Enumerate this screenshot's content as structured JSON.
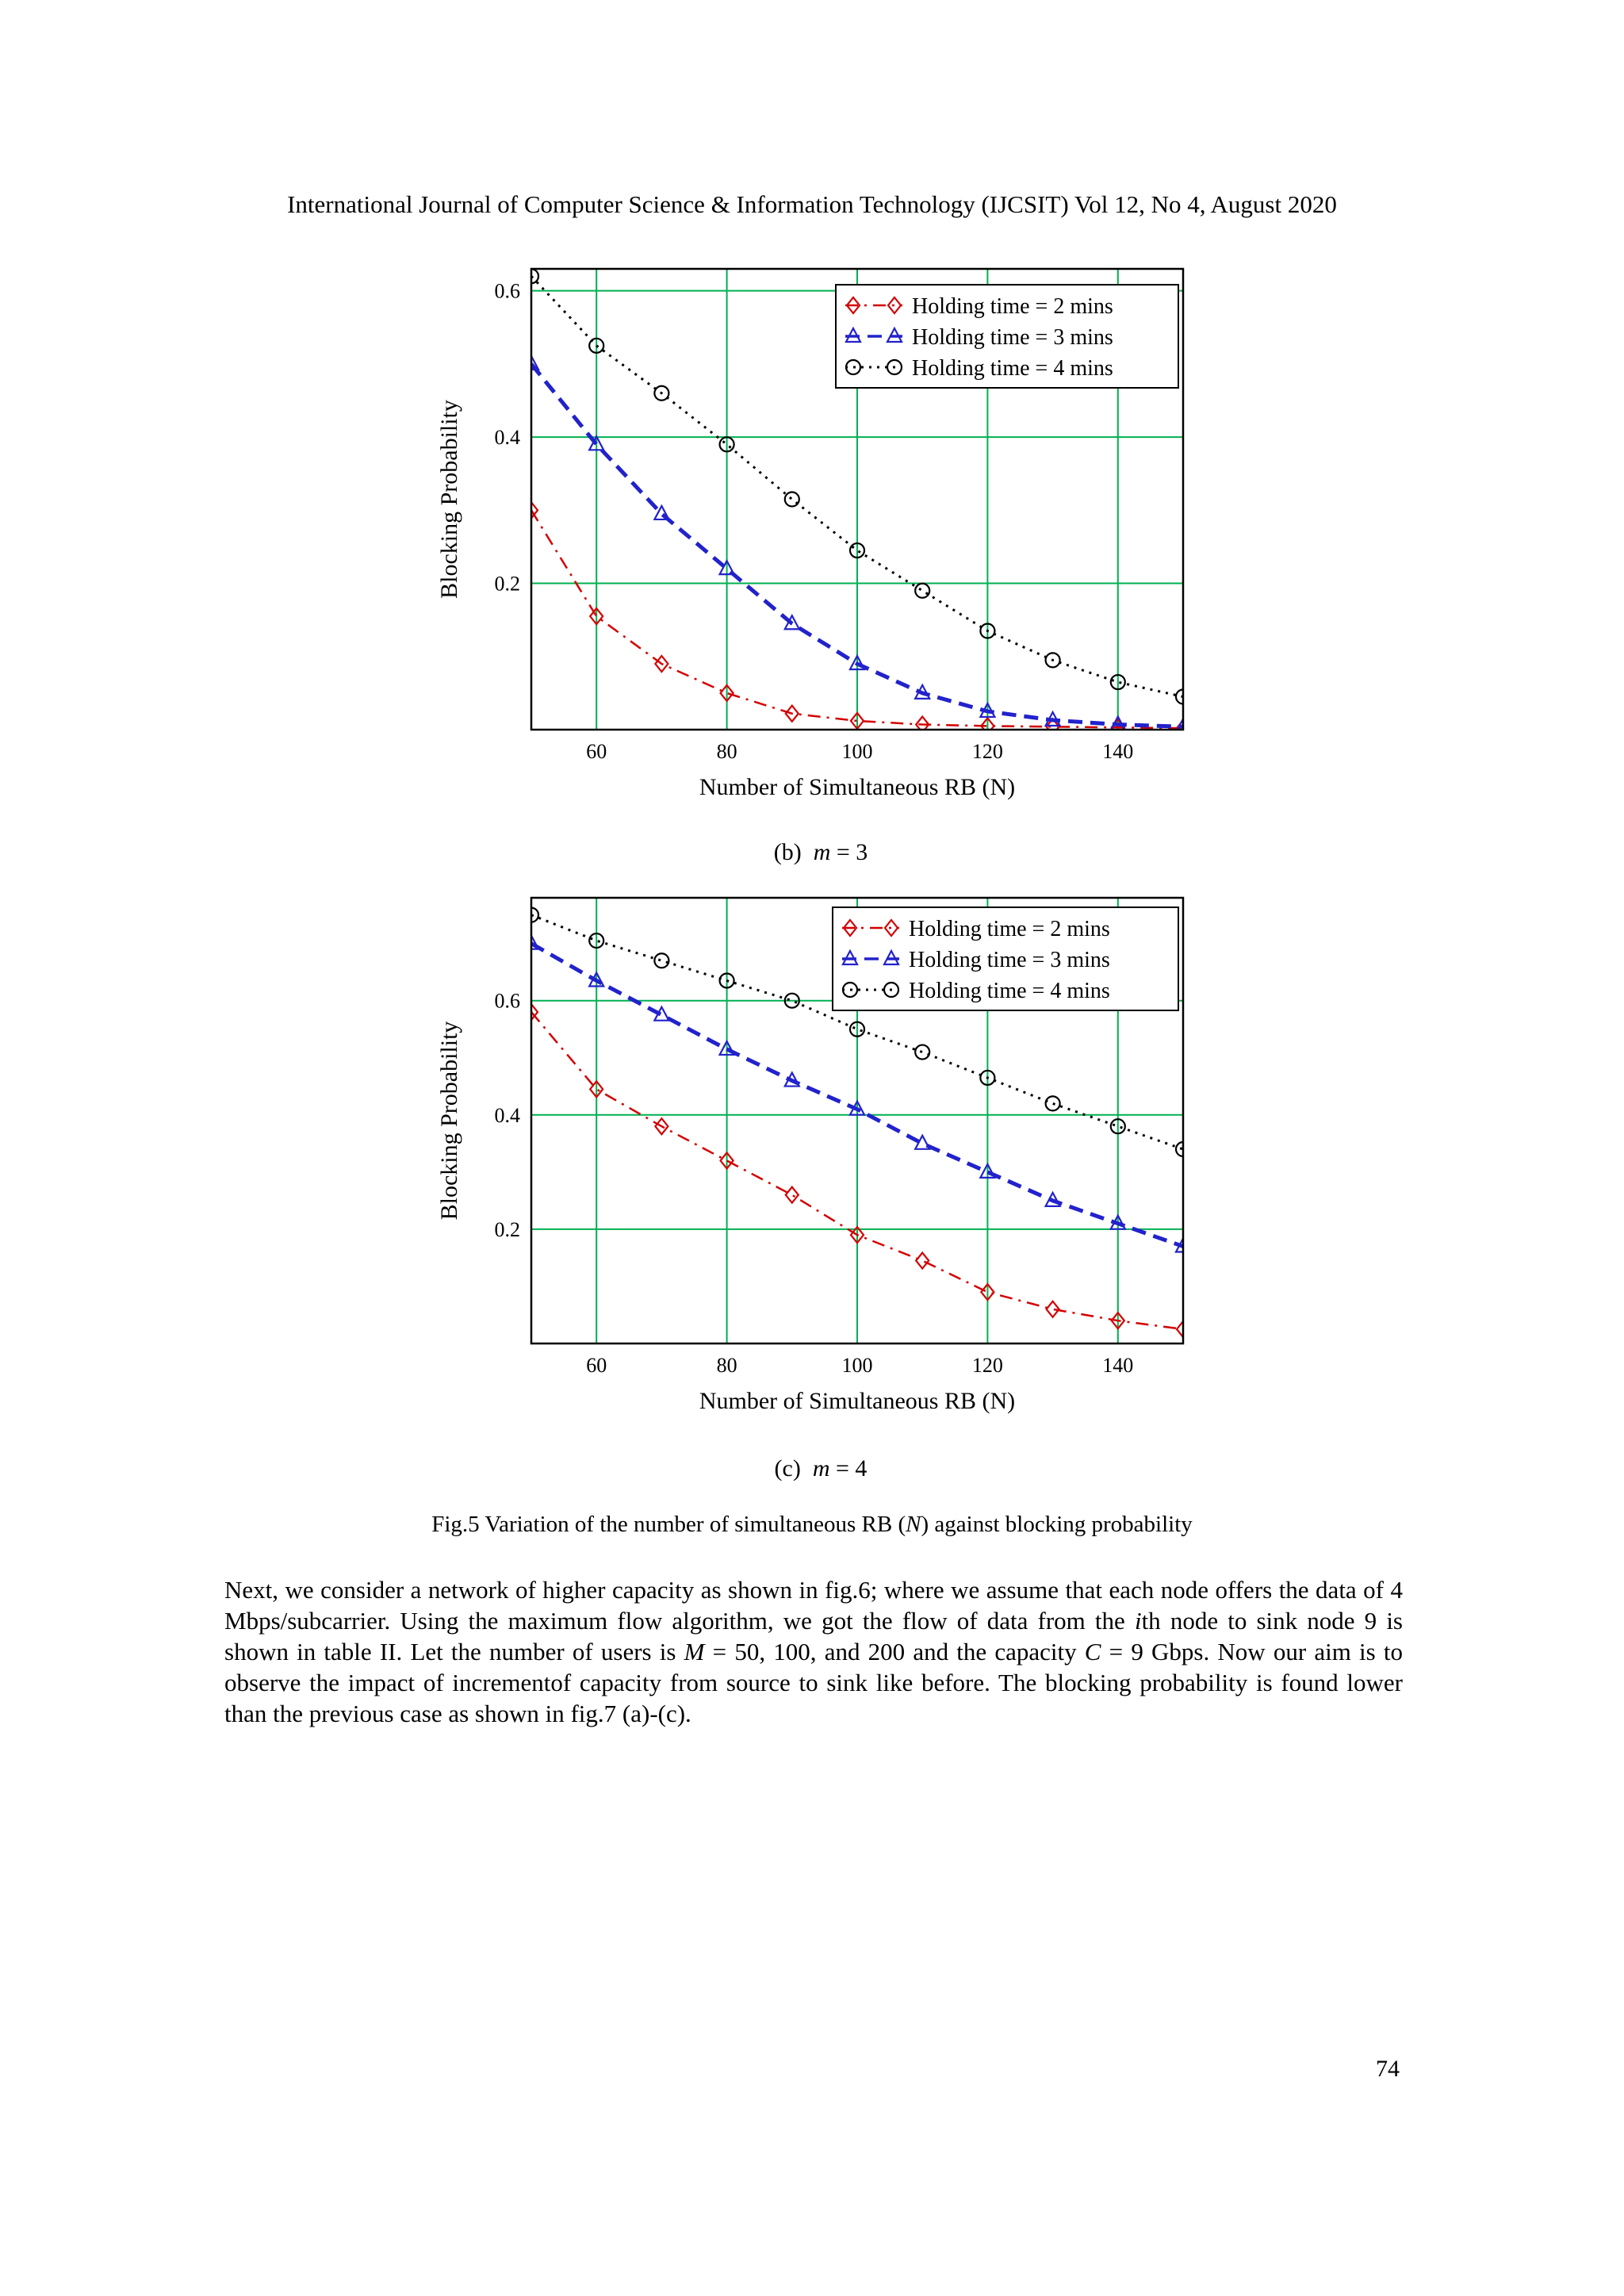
{
  "page": {
    "header": "International Journal of Computer Science & Information Technology (IJCSIT) Vol 12, No 4, August 2020",
    "page_number": "74"
  },
  "figure": {
    "caption_segments": [
      {
        "t": "Fig.5 Variation of the number of simultaneous RB ("
      },
      {
        "t": "N",
        "i": true
      },
      {
        "t": ") against blocking probability"
      }
    ],
    "sub_captions": {
      "b": [
        {
          "t": "(b)  "
        },
        {
          "t": "m",
          "i": true
        },
        {
          "t": " = 3"
        }
      ],
      "c": [
        {
          "t": "(c)  "
        },
        {
          "t": "m",
          "i": true
        },
        {
          "t": " = 4"
        }
      ]
    }
  },
  "paragraph_segments": [
    {
      "t": "Next, we consider a network of higher capacity as shown in fig.6; where we assume that each node offers the data of 4 Mbps/subcarrier. Using the maximum flow algorithm, we got the flow of data from the "
    },
    {
      "t": "i",
      "i": true
    },
    {
      "t": "th node to sink node 9 is shown in table II. Let the number of users is "
    },
    {
      "t": "M",
      "i": true
    },
    {
      "t": " = 50, 100, and 200 and the capacity "
    },
    {
      "t": "C",
      "i": true
    },
    {
      "t": " = 9 Gbps. Now our aim is to observe the impact of incrementof capacity from source to sink like before. The blocking probability is found lower than the previous case as shown in fig.7 (a)-(c)."
    }
  ],
  "colors": {
    "grid": "#00b050",
    "red": "#d40000",
    "blue": "#2222cc",
    "black": "#000000",
    "axis": "#000000"
  },
  "chart_data": [
    {
      "id": "b",
      "type": "line",
      "title": "(b) m = 3",
      "xlabel": "Number of Simultaneous RB (N)",
      "ylabel": "Blocking Probability",
      "xlim": [
        50,
        150
      ],
      "ylim": [
        0,
        0.63
      ],
      "xticks": [
        60,
        80,
        100,
        120,
        140
      ],
      "yticks": [
        0.2,
        0.4,
        0.6
      ],
      "grid": true,
      "legend_position": "top-right",
      "x": [
        50,
        60,
        70,
        80,
        90,
        100,
        110,
        120,
        130,
        140,
        150
      ],
      "series": [
        {
          "name": "Holding time = 2 mins",
          "color": "#d40000",
          "marker": "diamond",
          "linestyle": "dashdot",
          "width": 2.5,
          "values": [
            0.3,
            0.155,
            0.09,
            0.05,
            0.022,
            0.012,
            0.007,
            0.005,
            0.004,
            0.003,
            0.002
          ]
        },
        {
          "name": "Holding time = 3 mins",
          "color": "#2222cc",
          "marker": "triangle",
          "linestyle": "dashed",
          "width": 5,
          "values": [
            0.5,
            0.39,
            0.295,
            0.22,
            0.145,
            0.09,
            0.05,
            0.025,
            0.013,
            0.007,
            0.004
          ]
        },
        {
          "name": "Holding time = 4 mins",
          "color": "#000000",
          "marker": "circle",
          "linestyle": "dotted",
          "width": 3,
          "values": [
            0.62,
            0.525,
            0.46,
            0.39,
            0.315,
            0.245,
            0.19,
            0.135,
            0.095,
            0.065,
            0.045
          ]
        }
      ]
    },
    {
      "id": "c",
      "type": "line",
      "title": "(c) m = 4",
      "xlabel": "Number of Simultaneous RB (N)",
      "ylabel": "Blocking Probability",
      "xlim": [
        50,
        150
      ],
      "ylim": [
        0,
        0.78
      ],
      "xticks": [
        60,
        80,
        100,
        120,
        140
      ],
      "yticks": [
        0.2,
        0.4,
        0.6
      ],
      "grid": true,
      "legend_position": "top-right",
      "x": [
        50,
        60,
        70,
        80,
        90,
        100,
        110,
        120,
        130,
        140,
        150
      ],
      "series": [
        {
          "name": "Holding time = 2 mins",
          "color": "#d40000",
          "marker": "diamond",
          "linestyle": "dashdot",
          "width": 2.5,
          "values": [
            0.58,
            0.445,
            0.38,
            0.32,
            0.26,
            0.19,
            0.145,
            0.09,
            0.06,
            0.04,
            0.025
          ]
        },
        {
          "name": "Holding time = 3 mins",
          "color": "#2222cc",
          "marker": "triangle",
          "linestyle": "dashed",
          "width": 5,
          "values": [
            0.7,
            0.635,
            0.575,
            0.515,
            0.46,
            0.41,
            0.35,
            0.3,
            0.25,
            0.21,
            0.17
          ]
        },
        {
          "name": "Holding time = 4 mins",
          "color": "#000000",
          "marker": "circle",
          "linestyle": "dotted",
          "width": 3,
          "values": [
            0.75,
            0.705,
            0.67,
            0.635,
            0.6,
            0.55,
            0.51,
            0.465,
            0.42,
            0.38,
            0.34
          ]
        }
      ]
    }
  ]
}
